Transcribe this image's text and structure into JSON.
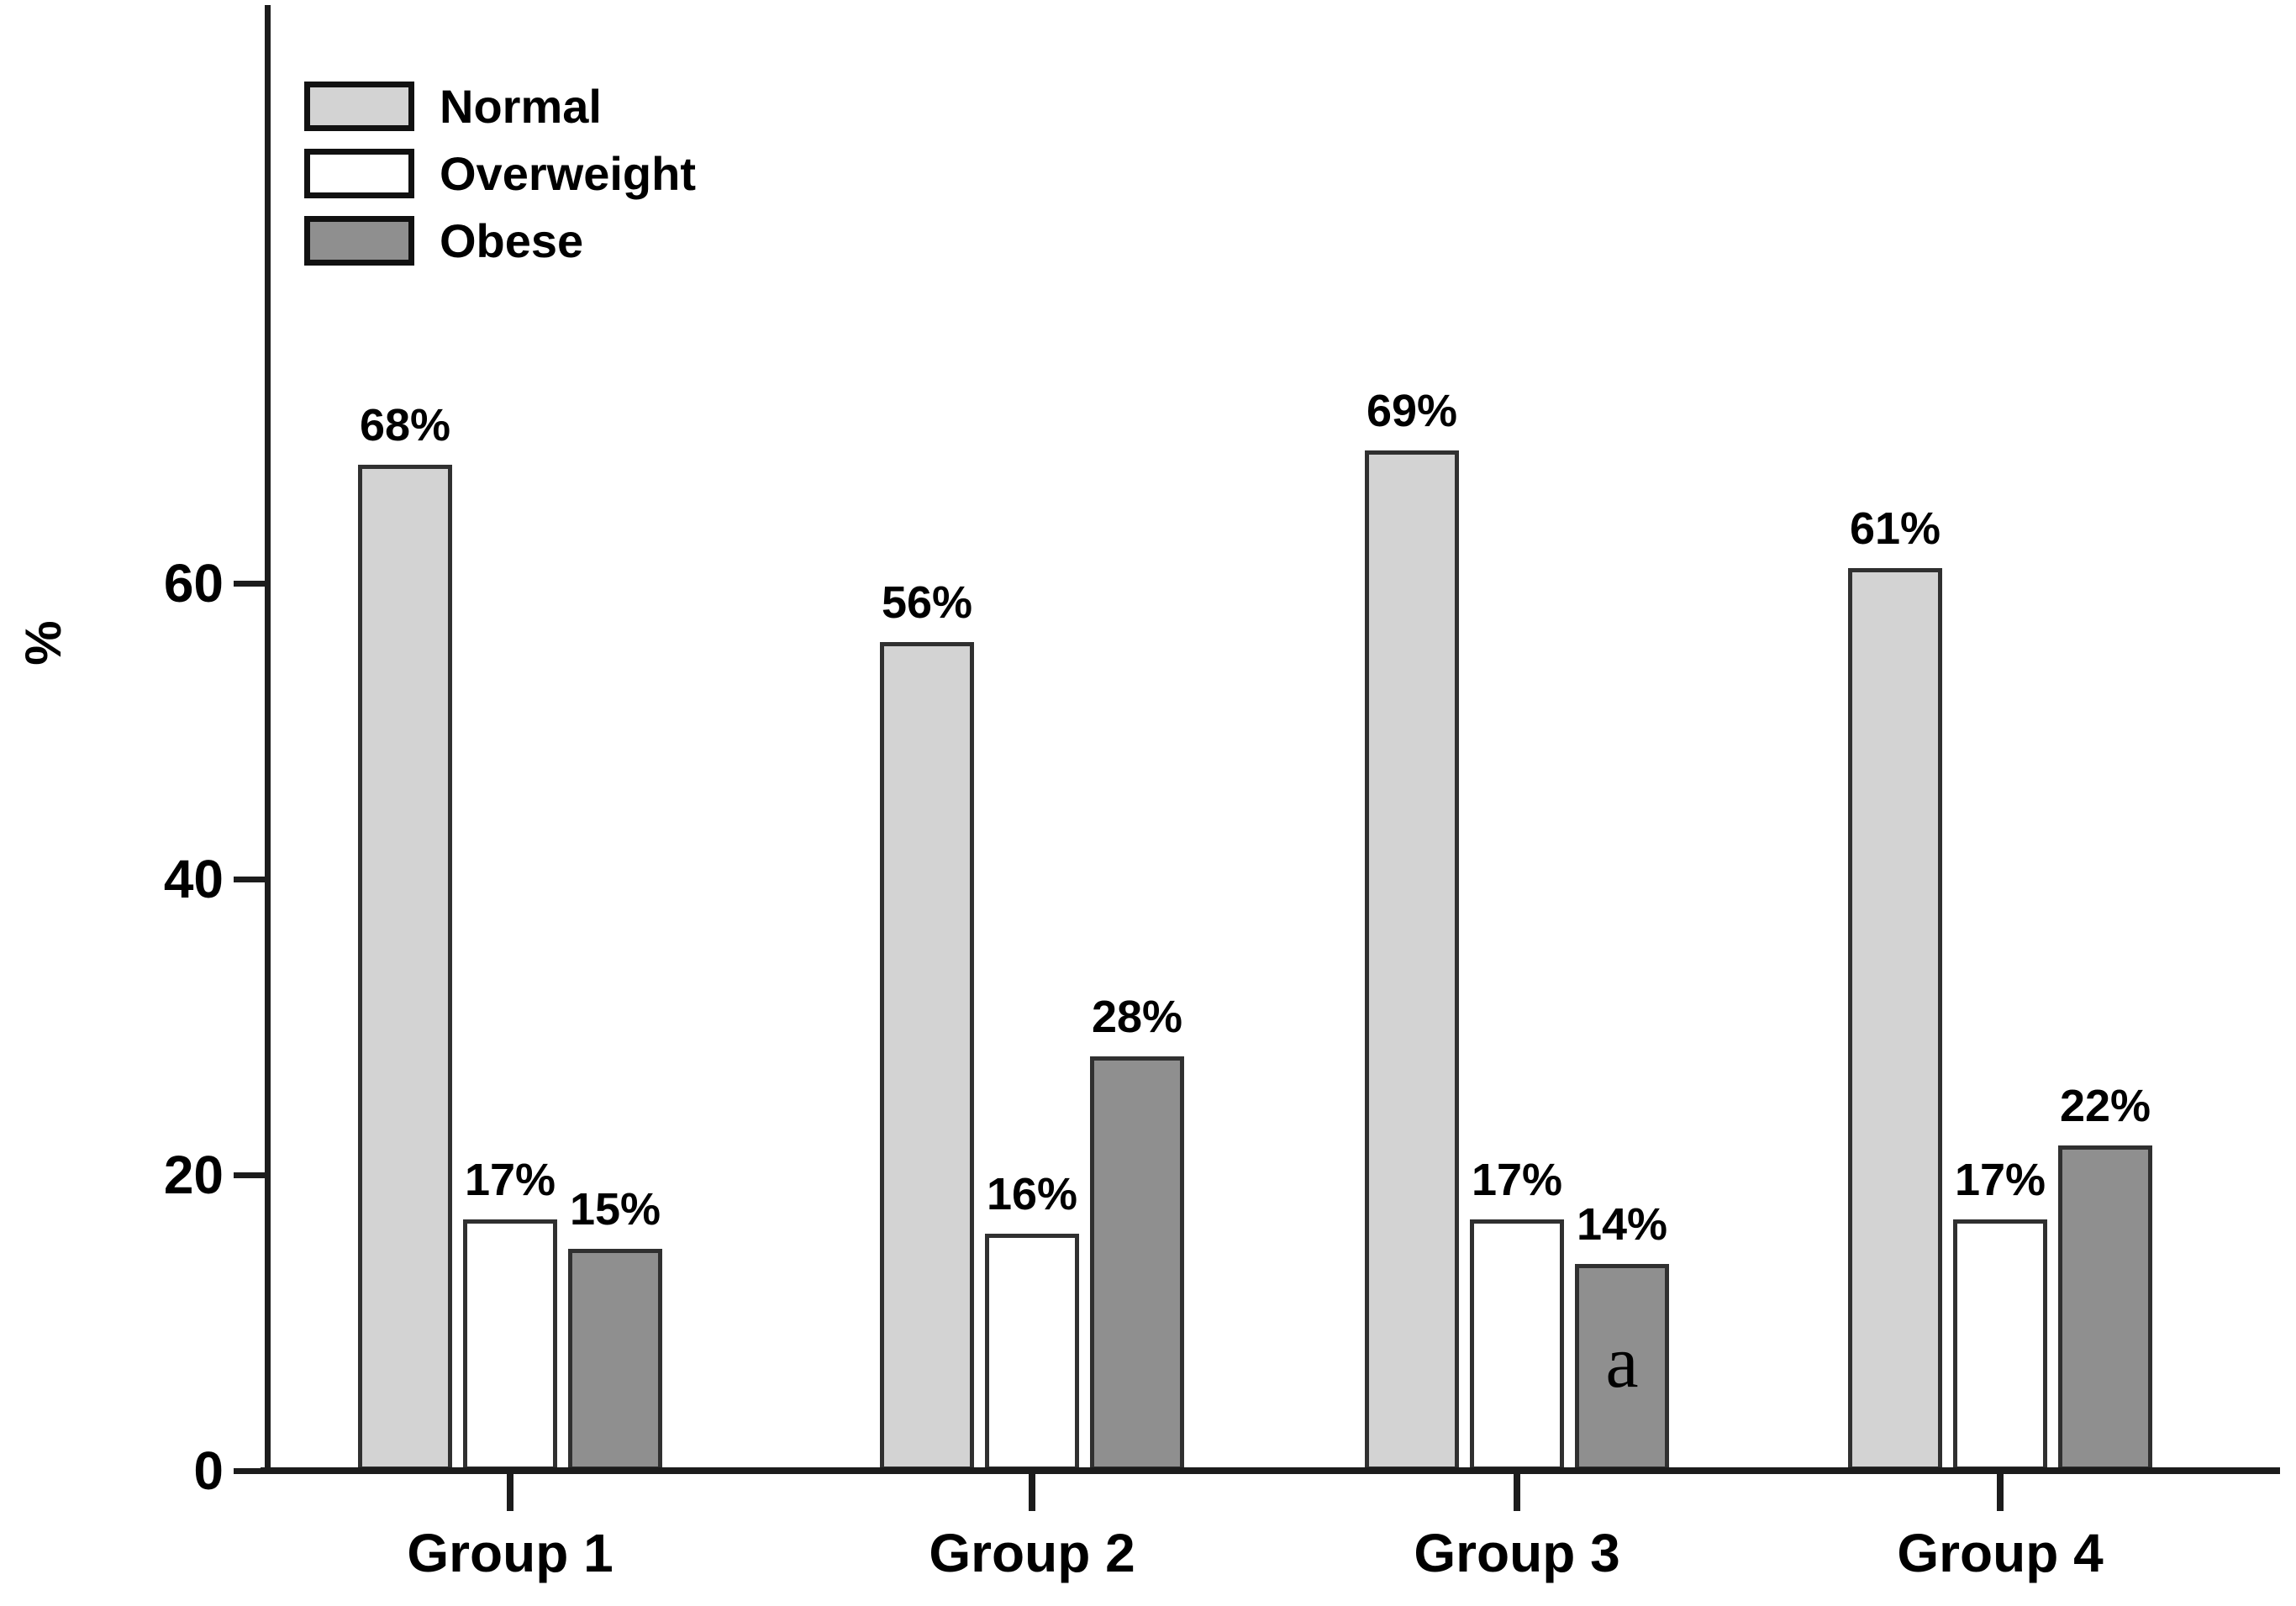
{
  "figure": {
    "background": "#ffffff"
  },
  "legend": {
    "position": "top-left",
    "items": [
      {
        "label": "Normal",
        "color": "#d3d3d3"
      },
      {
        "label": "Overweight",
        "color": "#ffffff"
      },
      {
        "label": "Obese",
        "color": "#8f8f8f"
      }
    ]
  },
  "chart_data": {
    "type": "bar",
    "categories": [
      "Group 1",
      "Group 2",
      "Group 3",
      "Group 4"
    ],
    "series": [
      {
        "name": "Normal",
        "color": "#d3d3d3",
        "values": [
          68,
          56,
          69,
          61
        ]
      },
      {
        "name": "Overweight",
        "color": "#ffffff",
        "values": [
          17,
          16,
          17,
          17
        ]
      },
      {
        "name": "Obese",
        "color": "#8f8f8f",
        "values": [
          15,
          28,
          14,
          22
        ]
      }
    ],
    "value_labels": [
      [
        "68%",
        "56%",
        "69%",
        "61%"
      ],
      [
        "17%",
        "16%",
        "17%",
        "17%"
      ],
      [
        "15%",
        "28%",
        "14%",
        "22%"
      ]
    ],
    "title": "",
    "xlabel": "",
    "ylabel": "%",
    "yticks": [
      "0",
      "20",
      "40",
      "60"
    ],
    "ytick_values": [
      0,
      20,
      40,
      60
    ],
    "ylim": [
      0,
      99
    ],
    "grid": false,
    "legend_position": "top-left",
    "bar_border_color": "#303030",
    "annotations": [
      {
        "text": "a",
        "category_index": 2,
        "series_index": 2,
        "placement": "inside-bar"
      }
    ]
  }
}
